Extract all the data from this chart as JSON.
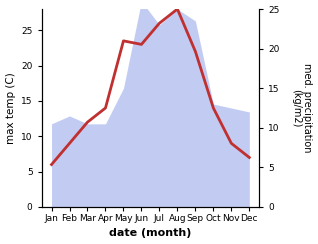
{
  "months": [
    "Jan",
    "Feb",
    "Mar",
    "Apr",
    "May",
    "Jun",
    "Jul",
    "Aug",
    "Sep",
    "Oct",
    "Nov",
    "Dec"
  ],
  "temp": [
    6.0,
    9.0,
    12.0,
    14.0,
    23.5,
    23.0,
    26.0,
    28.0,
    22.0,
    14.0,
    9.0,
    7.0
  ],
  "precip": [
    10.5,
    11.5,
    10.5,
    10.5,
    15.0,
    26.0,
    23.0,
    25.0,
    23.5,
    13.0,
    12.5,
    12.0
  ],
  "temp_color": "#c03030",
  "precip_fill_color": "#b8c4f0",
  "xlabel": "date (month)",
  "ylabel_left": "max temp (C)",
  "ylabel_right": "med. precipitation\n(kg/m2)",
  "ylim_left": [
    0,
    28
  ],
  "ylim_right": [
    0,
    25
  ],
  "yticks_left": [
    0,
    5,
    10,
    15,
    20,
    25
  ],
  "yticks_right": [
    0,
    5,
    10,
    15,
    20,
    25
  ],
  "background_color": "#ffffff",
  "fig_bg": "#ffffff"
}
